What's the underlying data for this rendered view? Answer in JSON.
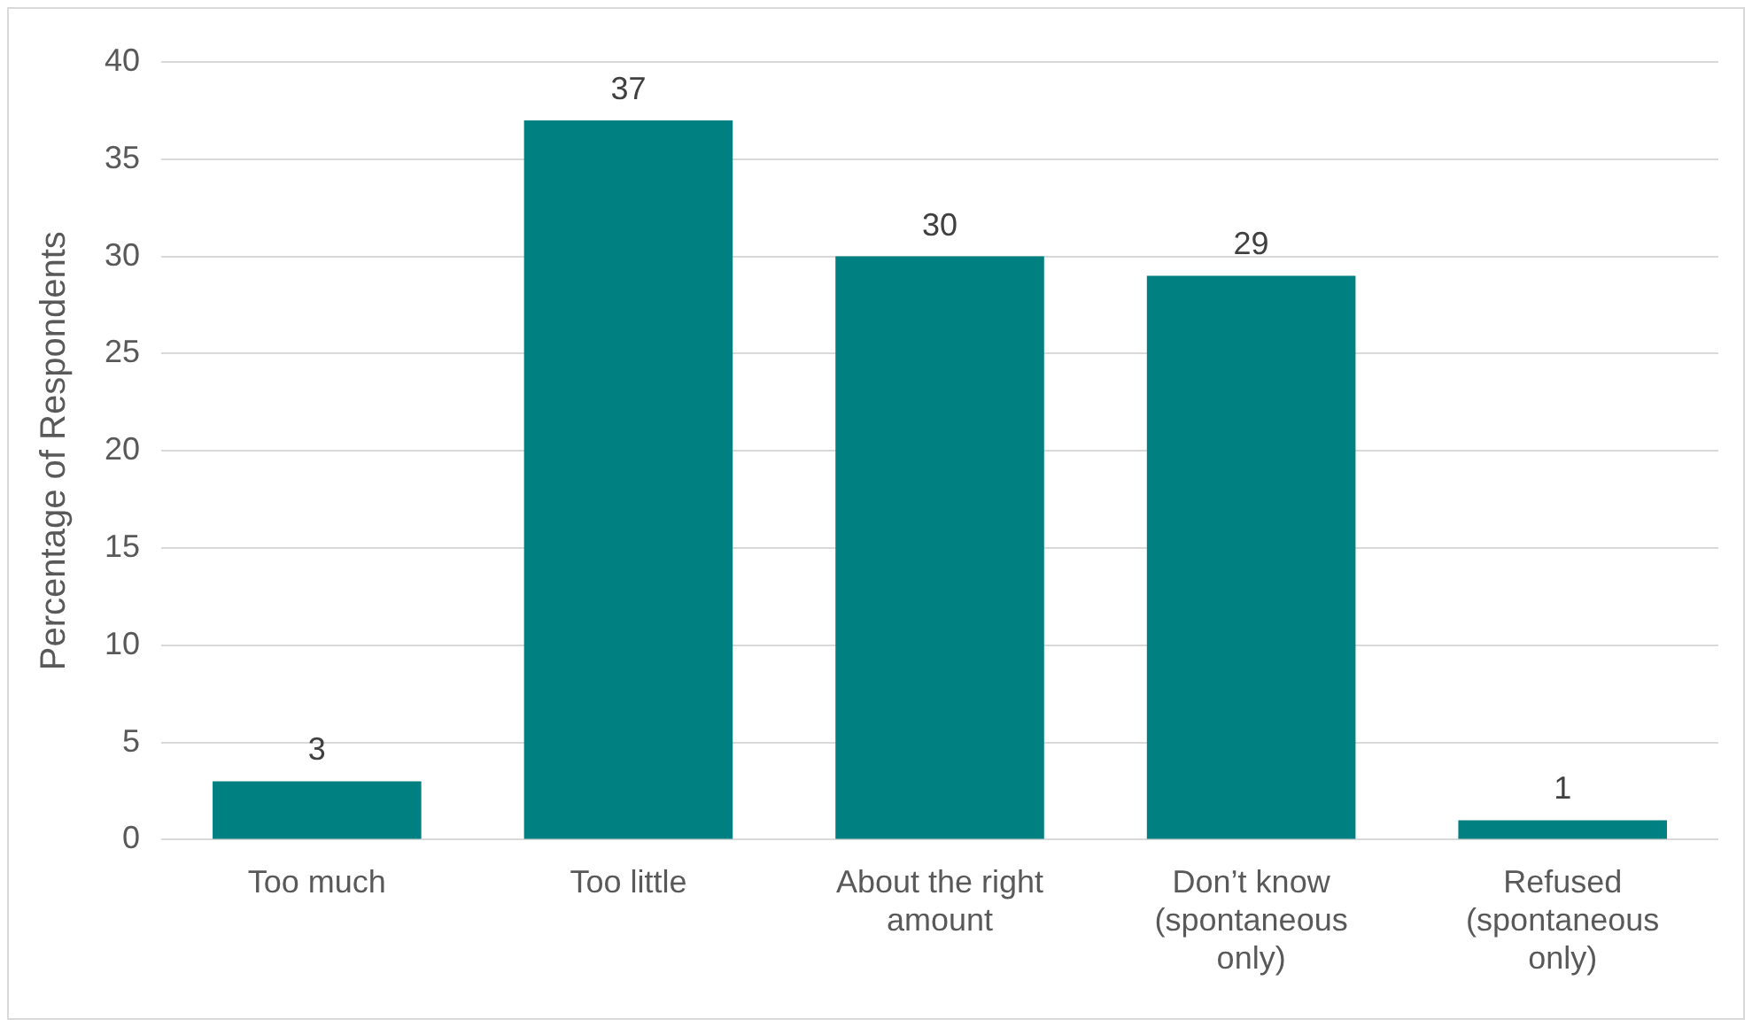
{
  "chart_data": {
    "type": "bar",
    "ylabel": "Percentage of Respondents",
    "categories": [
      "Too much",
      "Too little",
      "About the right amount",
      "Don’t know (spontaneous only)",
      "Refused (spontaneous only)"
    ],
    "values": [
      3,
      37,
      30,
      29,
      1
    ],
    "color": "#008080",
    "ylim": [
      0,
      40
    ],
    "yticks": [
      0,
      5,
      10,
      15,
      20,
      25,
      30,
      35,
      40
    ],
    "grid": "y",
    "legend": false,
    "data_labels": true
  }
}
